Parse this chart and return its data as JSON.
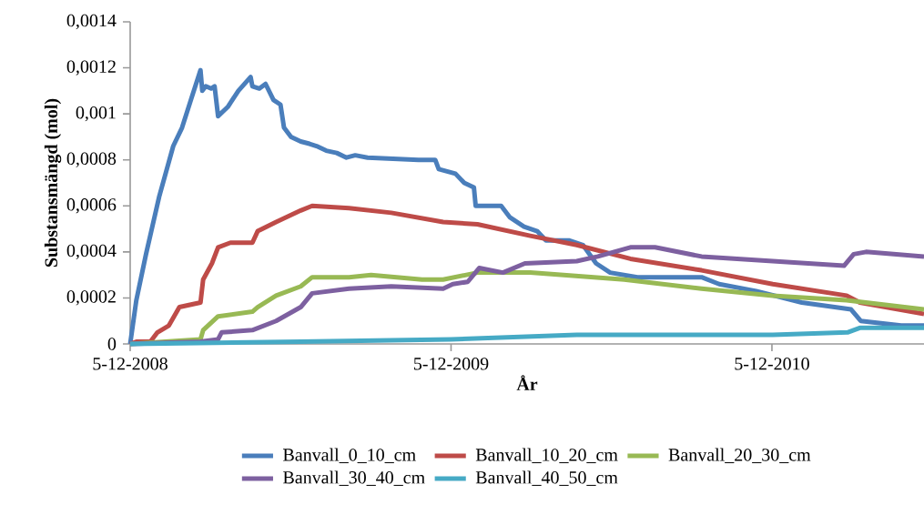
{
  "chart_data": {
    "type": "line",
    "xlabel": "År",
    "ylabel": "Substansmängd (mol)",
    "xlim": [
      "2008-12-05",
      "2011-05-27"
    ],
    "xticks": [
      {
        "value": "2008-12-05",
        "label": "5-12-2008"
      },
      {
        "value": "2009-12-05",
        "label": "5-12-2009"
      },
      {
        "value": "2010-12-05",
        "label": "5-12-2010"
      }
    ],
    "ylim": [
      0,
      0.0014
    ],
    "yticks": [
      0,
      {
        "value": 0.0002,
        "label": "0,0002"
      },
      {
        "value": 0.0004,
        "label": "0,0004"
      },
      {
        "value": 0.0006,
        "label": "0,0006"
      },
      {
        "value": 0.0008,
        "label": "0,0008"
      },
      {
        "value": 0.001,
        "label": "0,001"
      },
      {
        "value": 0.0012,
        "label": "0,0012"
      },
      {
        "value": 0.0014,
        "label": "0,0014"
      }
    ],
    "legend": "bottom",
    "series": [
      {
        "name": "Banvall_0_10_cm",
        "color": "#4a7ebb",
        "x": [
          "2008-12-05",
          "2008-12-12",
          "2008-12-23",
          "2009-01-07",
          "2009-01-23",
          "2009-02-02",
          "2009-02-12",
          "2009-02-23",
          "2009-02-25",
          "2009-03-01",
          "2009-03-07",
          "2009-03-11",
          "2009-03-15",
          "2009-03-26",
          "2009-04-07",
          "2009-04-21",
          "2009-04-23",
          "2009-05-01",
          "2009-05-08",
          "2009-05-17",
          "2009-05-25",
          "2009-05-29",
          "2009-06-06",
          "2009-06-17",
          "2009-06-27",
          "2009-07-05",
          "2009-07-16",
          "2009-07-28",
          "2009-08-08",
          "2009-08-18",
          "2009-09-01",
          "2009-10-29",
          "2009-11-17",
          "2009-11-21",
          "2009-12-10",
          "2009-12-20",
          "2009-12-31",
          "2010-01-02",
          "2010-01-31",
          "2010-02-10",
          "2010-02-26",
          "2010-03-13",
          "2010-03-23",
          "2010-04-18",
          "2010-05-04",
          "2010-05-19",
          "2010-06-04",
          "2010-07-05",
          "2010-09-16",
          "2010-10-06",
          "2010-11-17",
          "2011-01-08",
          "2011-03-05",
          "2011-03-16",
          "2011-05-01",
          "2011-05-27"
        ],
        "values": [
          0,
          0.00019,
          0.00039,
          0.00064,
          0.00086,
          0.00094,
          0.00106,
          0.00119,
          0.0011,
          0.00112,
          0.00111,
          0.00112,
          0.00099,
          0.00103,
          0.0011,
          0.00116,
          0.00112,
          0.00111,
          0.00113,
          0.00106,
          0.00104,
          0.00094,
          0.0009,
          0.00088,
          0.00087,
          0.00086,
          0.00084,
          0.00083,
          0.00081,
          0.00082,
          0.00081,
          0.0008,
          0.0008,
          0.00076,
          0.00074,
          0.0007,
          0.00068,
          0.0006,
          0.0006,
          0.00055,
          0.00051,
          0.00049,
          0.00045,
          0.00045,
          0.00043,
          0.00035,
          0.00031,
          0.00029,
          0.00029,
          0.00026,
          0.00023,
          0.00018,
          0.00015,
          0.0001,
          8e-05,
          8e-05
        ]
      },
      {
        "name": "Banvall_10_20_cm",
        "color": "#be4b48",
        "x": [
          "2008-12-05",
          "2008-12-12",
          "2008-12-28",
          "2009-01-05",
          "2009-01-18",
          "2009-01-30",
          "2009-02-23",
          "2009-02-26",
          "2009-03-08",
          "2009-03-15",
          "2009-03-29",
          "2009-04-23",
          "2009-04-29",
          "2009-05-20",
          "2009-06-17",
          "2009-06-30",
          "2009-08-11",
          "2009-09-28",
          "2009-11-26",
          "2010-01-04",
          "2010-03-05",
          "2010-04-27",
          "2010-06-27",
          "2010-09-16",
          "2010-12-06",
          "2011-02-28",
          "2011-03-15",
          "2011-05-27"
        ],
        "values": [
          0,
          1e-05,
          1e-05,
          5e-05,
          8e-05,
          0.00016,
          0.00018,
          0.00028,
          0.00035,
          0.00042,
          0.00044,
          0.00044,
          0.00049,
          0.00053,
          0.00058,
          0.0006,
          0.00059,
          0.00057,
          0.00053,
          0.00052,
          0.00047,
          0.00043,
          0.00037,
          0.00032,
          0.00026,
          0.00021,
          0.00018,
          0.00013
        ]
      },
      {
        "name": "Banvall_20_30_cm",
        "color": "#98b954",
        "x": [
          "2008-12-05",
          "2009-02-23",
          "2009-02-26",
          "2009-03-15",
          "2009-04-23",
          "2009-04-29",
          "2009-05-20",
          "2009-06-17",
          "2009-06-30",
          "2009-08-11",
          "2009-09-05",
          "2009-11-02",
          "2009-11-26",
          "2010-01-04",
          "2010-03-05",
          "2010-06-20",
          "2010-09-16",
          "2010-12-06",
          "2011-02-28",
          "2011-05-27"
        ],
        "values": [
          0,
          2e-05,
          6e-05,
          0.00012,
          0.00014,
          0.00016,
          0.00021,
          0.00025,
          0.00029,
          0.00029,
          0.0003,
          0.00028,
          0.00028,
          0.00031,
          0.00031,
          0.00028,
          0.00024,
          0.00021,
          0.00019,
          0.00015
        ]
      },
      {
        "name": "Banvall_30_40_cm",
        "color": "#7d60a0",
        "x": [
          "2008-12-05",
          "2009-02-23",
          "2009-03-15",
          "2009-03-19",
          "2009-04-23",
          "2009-05-20",
          "2009-06-17",
          "2009-06-30",
          "2009-08-11",
          "2009-09-28",
          "2009-11-26",
          "2009-12-07",
          "2009-12-24",
          "2010-01-06",
          "2010-02-02",
          "2010-02-27",
          "2010-04-27",
          "2010-05-21",
          "2010-06-27",
          "2010-07-25",
          "2010-09-16",
          "2010-12-06",
          "2011-02-25",
          "2011-03-08",
          "2011-03-22",
          "2011-05-27"
        ],
        "values": [
          0,
          1e-05,
          2e-05,
          5e-05,
          6e-05,
          0.0001,
          0.00016,
          0.00022,
          0.00024,
          0.00025,
          0.00024,
          0.00026,
          0.00027,
          0.00033,
          0.00031,
          0.00035,
          0.00036,
          0.00038,
          0.00042,
          0.00042,
          0.00038,
          0.00036,
          0.00034,
          0.00039,
          0.0004,
          0.00038
        ]
      },
      {
        "name": "Banvall_40_50_cm",
        "color": "#46aac5",
        "x": [
          "2008-12-05",
          "2009-06-17",
          "2009-12-05",
          "2010-04-27",
          "2010-12-06",
          "2011-03-01",
          "2011-03-15",
          "2011-05-27"
        ],
        "values": [
          0,
          1e-05,
          2e-05,
          4e-05,
          4e-05,
          5e-05,
          7e-05,
          7e-05
        ]
      }
    ]
  }
}
